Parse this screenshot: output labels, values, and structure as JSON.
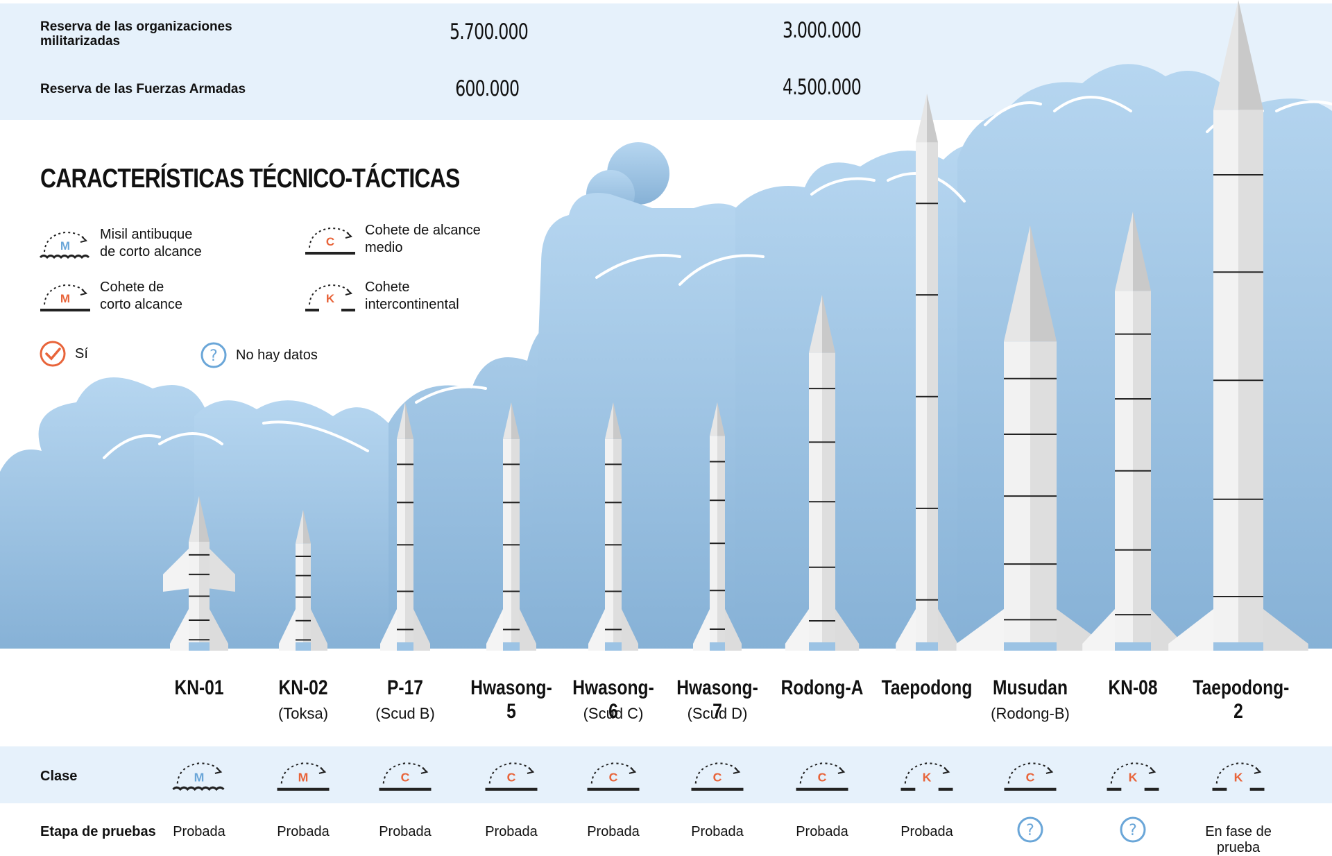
{
  "reserves": [
    {
      "label": "Reserva de las organizaciones\nmilitarizadas",
      "values": [
        "5.700.000",
        "3.000.000"
      ]
    },
    {
      "label": "Reserva de las Fuerzas Armadas",
      "values": [
        "600.000",
        "4.500.000"
      ]
    }
  ],
  "section_title": "CARACTERÍSTICAS TÉCNICO-TÁCTICAS",
  "legend": {
    "items": [
      {
        "code": "M",
        "style": "waves",
        "code_color": "#6aa6d8",
        "text": "Misil antibuque\nde corto alcance"
      },
      {
        "code": "C",
        "style": "line",
        "code_color": "#e8643a",
        "text": "Cohete de alcance\nmedio"
      },
      {
        "code": "M",
        "style": "line",
        "code_color": "#e8643a",
        "text": "Cohete de\ncorto alcance"
      },
      {
        "code": "K",
        "style": "dashes",
        "code_color": "#e8643a",
        "text": "Cohete\nintercontinental"
      }
    ],
    "yes_label": "Sí",
    "nodata_label": "No hay datos"
  },
  "missiles": [
    {
      "name": "KN-01",
      "sub": "",
      "class": "M-waves",
      "testing": "Probada"
    },
    {
      "name": "KN-02",
      "sub": "(Toksa)",
      "class": "M-line",
      "testing": "Probada"
    },
    {
      "name": "P-17",
      "sub": "(Scud B)",
      "class": "C",
      "testing": "Probada"
    },
    {
      "name": "Hwasong-5",
      "sub": "",
      "class": "C",
      "testing": "Probada"
    },
    {
      "name": "Hwasong-6",
      "sub": "(Scud C)",
      "class": "C",
      "testing": "Probada"
    },
    {
      "name": "Hwasong-7",
      "sub": "(Scud D)",
      "class": "C",
      "testing": "Probada"
    },
    {
      "name": "Rodong-A",
      "sub": "",
      "class": "C",
      "testing": "Probada"
    },
    {
      "name": "Taepodong",
      "sub": "",
      "class": "K",
      "testing": "Probada"
    },
    {
      "name": "Musudan",
      "sub": "(Rodong-B)",
      "class": "C",
      "testing": "?"
    },
    {
      "name": "KN-08",
      "sub": "",
      "class": "K",
      "testing": "?"
    },
    {
      "name": "Taepodong-2",
      "sub": "",
      "class": "K",
      "testing": "En fase de prueba"
    }
  ],
  "rows": {
    "class_label": "Clase",
    "testing_label": "Etapa de pruebas"
  },
  "colors": {
    "band": "#e6f1fb",
    "cloud": "#aed0ec",
    "orange": "#e8643a",
    "blue": "#6aa6d8"
  }
}
